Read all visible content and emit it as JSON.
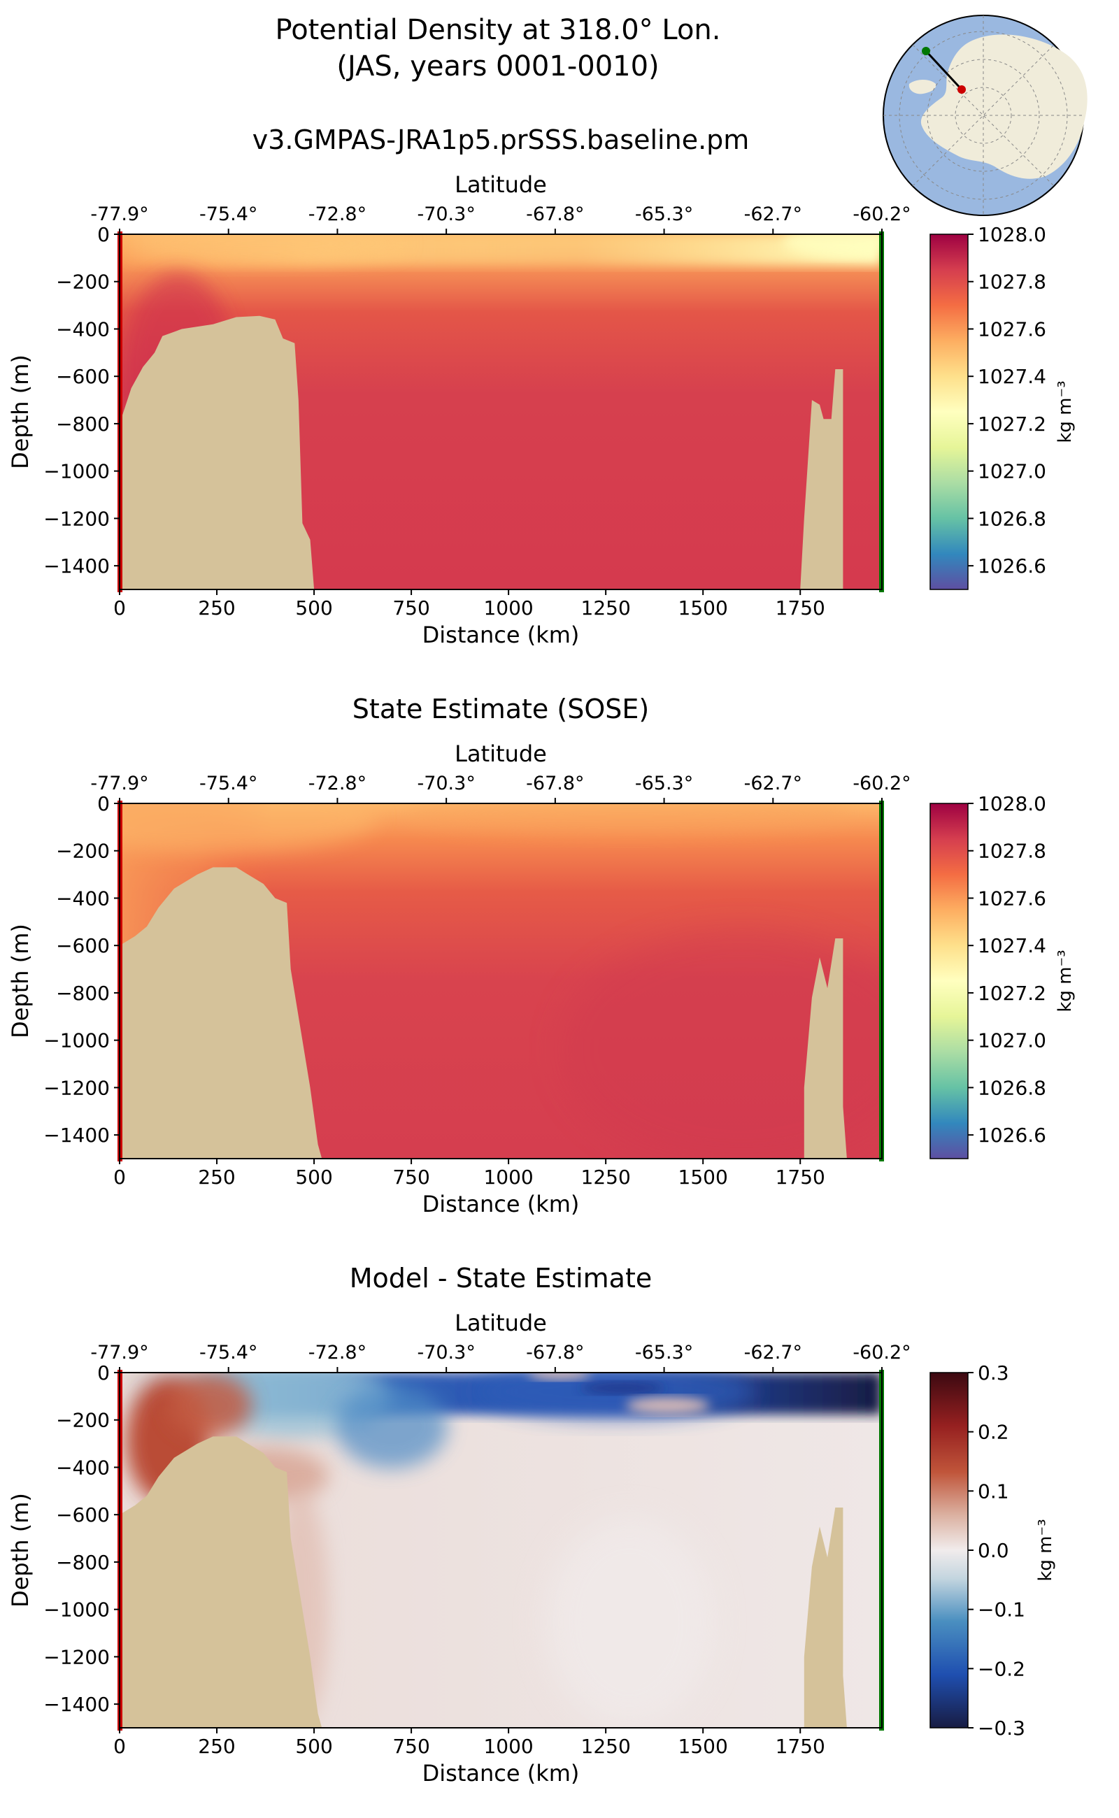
{
  "figure": {
    "title_line1": "Potential Density at 318.0° Lon.",
    "title_line2": "(JAS, years 0001-0010)"
  },
  "chart_data": [
    {
      "type": "heatmap",
      "title": "v3.GMPAS-JRA1p5.prSSS.baseline.pm",
      "xlabel": "Distance (km)",
      "ylabel": "Depth (m)",
      "top_axis_label": "Latitude",
      "xlim": [
        0,
        1960
      ],
      "ylim": [
        -1500,
        0
      ],
      "x_ticks": [
        0,
        250,
        500,
        750,
        1000,
        1250,
        1500,
        1750
      ],
      "y_ticks": [
        0,
        -200,
        -400,
        -600,
        -800,
        -1000,
        -1200,
        -1400
      ],
      "x_tick_labels": [
        "0",
        "250",
        "500",
        "750",
        "1000",
        "1250",
        "1500",
        "1750"
      ],
      "y_tick_labels": [
        "0",
        "−200",
        "−400",
        "−600",
        "−800",
        "−1000",
        "−1200",
        "−1400"
      ],
      "lat_tick_labels": [
        "-77.9°",
        "-75.4°",
        "-72.8°",
        "-70.3°",
        "-67.8°",
        "-65.3°",
        "-62.7°",
        "-60.2°"
      ],
      "lat_tick_positions_km": [
        0,
        280,
        560,
        840,
        1120,
        1400,
        1680,
        1960
      ],
      "colorbar": {
        "label": "kg m⁻³",
        "range": [
          1026.5,
          1028.0
        ],
        "colormap": "Spectral_r",
        "tick_values": [
          1028.0,
          1027.8,
          1027.6,
          1027.4,
          1027.2,
          1027.0,
          1026.8,
          1026.6
        ],
        "tick_labels": [
          "1028.0",
          "1027.8",
          "1027.6",
          "1027.4",
          "1027.2",
          "1027.0",
          "1026.8",
          "1026.6"
        ]
      },
      "field_summary": {
        "surface_density_range": [
          1027.4,
          1027.6
        ],
        "interior_density": 1027.85,
        "near_shelf_bottom_density": 1027.95
      },
      "bathymetry_km_depth": [
        [
          0,
          -800
        ],
        [
          30,
          -650
        ],
        [
          60,
          -560
        ],
        [
          90,
          -500
        ],
        [
          110,
          -430
        ],
        [
          160,
          -400
        ],
        [
          240,
          -380
        ],
        [
          300,
          -350
        ],
        [
          360,
          -345
        ],
        [
          400,
          -360
        ],
        [
          420,
          -440
        ],
        [
          450,
          -460
        ],
        [
          460,
          -700
        ],
        [
          470,
          -1220
        ],
        [
          490,
          -1290
        ],
        [
          500,
          -1500
        ]
      ],
      "ridge_km_depth": [
        [
          1750,
          -1500
        ],
        [
          1760,
          -1200
        ],
        [
          1780,
          -700
        ],
        [
          1800,
          -720
        ],
        [
          1810,
          -780
        ],
        [
          1830,
          -780
        ],
        [
          1840,
          -570
        ],
        [
          1860,
          -570
        ],
        [
          1860,
          -1500
        ]
      ]
    },
    {
      "type": "heatmap",
      "title": "State Estimate (SOSE)",
      "xlabel": "Distance (km)",
      "ylabel": "Depth (m)",
      "top_axis_label": "Latitude",
      "xlim": [
        0,
        1960
      ],
      "ylim": [
        -1500,
        0
      ],
      "x_ticks": [
        0,
        250,
        500,
        750,
        1000,
        1250,
        1500,
        1750
      ],
      "y_ticks": [
        0,
        -200,
        -400,
        -600,
        -800,
        -1000,
        -1200,
        -1400
      ],
      "x_tick_labels": [
        "0",
        "250",
        "500",
        "750",
        "1000",
        "1250",
        "1500",
        "1750"
      ],
      "y_tick_labels": [
        "0",
        "−200",
        "−400",
        "−600",
        "−800",
        "−1000",
        "−1200",
        "−1400"
      ],
      "lat_tick_labels": [
        "-77.9°",
        "-75.4°",
        "-72.8°",
        "-70.3°",
        "-67.8°",
        "-65.3°",
        "-62.7°",
        "-60.2°"
      ],
      "lat_tick_positions_km": [
        0,
        280,
        560,
        840,
        1120,
        1400,
        1680,
        1960
      ],
      "colorbar": {
        "label": "kg m⁻³",
        "range": [
          1026.5,
          1028.0
        ],
        "colormap": "Spectral_r",
        "tick_values": [
          1028.0,
          1027.8,
          1027.6,
          1027.4,
          1027.2,
          1027.0,
          1026.8,
          1026.6
        ],
        "tick_labels": [
          "1028.0",
          "1027.8",
          "1027.6",
          "1027.4",
          "1027.2",
          "1027.0",
          "1026.8",
          "1026.6"
        ]
      },
      "field_summary": {
        "surface_density_range": [
          1027.4,
          1027.6
        ],
        "interior_density": 1027.85
      },
      "bathymetry_km_depth": [
        [
          0,
          -600
        ],
        [
          40,
          -560
        ],
        [
          70,
          -520
        ],
        [
          100,
          -440
        ],
        [
          140,
          -360
        ],
        [
          200,
          -300
        ],
        [
          240,
          -270
        ],
        [
          300,
          -270
        ],
        [
          330,
          -300
        ],
        [
          370,
          -340
        ],
        [
          400,
          -400
        ],
        [
          430,
          -420
        ],
        [
          440,
          -700
        ],
        [
          470,
          -1000
        ],
        [
          490,
          -1200
        ],
        [
          510,
          -1440
        ],
        [
          520,
          -1500
        ]
      ],
      "ridge_km_depth": [
        [
          1760,
          -1500
        ],
        [
          1760,
          -1200
        ],
        [
          1780,
          -820
        ],
        [
          1800,
          -650
        ],
        [
          1820,
          -780
        ],
        [
          1840,
          -570
        ],
        [
          1860,
          -570
        ],
        [
          1860,
          -1280
        ],
        [
          1870,
          -1500
        ]
      ]
    },
    {
      "type": "heatmap",
      "title": "Model - State Estimate",
      "xlabel": "Distance (km)",
      "ylabel": "Depth (m)",
      "top_axis_label": "Latitude",
      "xlim": [
        0,
        1960
      ],
      "ylim": [
        -1500,
        0
      ],
      "x_ticks": [
        0,
        250,
        500,
        750,
        1000,
        1250,
        1500,
        1750
      ],
      "y_ticks": [
        0,
        -200,
        -400,
        -600,
        -800,
        -1000,
        -1200,
        -1400
      ],
      "x_tick_labels": [
        "0",
        "250",
        "500",
        "750",
        "1000",
        "1250",
        "1500",
        "1750"
      ],
      "y_tick_labels": [
        "0",
        "−200",
        "−400",
        "−600",
        "−800",
        "−1000",
        "−1200",
        "−1400"
      ],
      "lat_tick_labels": [
        "-77.9°",
        "-75.4°",
        "-72.8°",
        "-70.3°",
        "-67.8°",
        "-65.3°",
        "-62.7°",
        "-60.2°"
      ],
      "lat_tick_positions_km": [
        0,
        280,
        560,
        840,
        1120,
        1400,
        1680,
        1960
      ],
      "colorbar": {
        "label": "kg m⁻³",
        "range": [
          -0.3,
          0.3
        ],
        "colormap": "balance",
        "tick_values": [
          0.3,
          0.2,
          0.1,
          0.0,
          -0.1,
          -0.2,
          -0.3
        ],
        "tick_labels": [
          "0.3",
          "0.2",
          "0.1",
          "0.0",
          "−0.1",
          "−0.2",
          "−0.3"
        ]
      },
      "field_summary": {
        "shelf_anomaly": 0.2,
        "surface_anomaly_offshore": -0.25,
        "interior_anomaly": 0.0
      },
      "bathymetry_km_depth": [
        [
          0,
          -600
        ],
        [
          40,
          -560
        ],
        [
          70,
          -520
        ],
        [
          100,
          -440
        ],
        [
          140,
          -360
        ],
        [
          200,
          -300
        ],
        [
          240,
          -270
        ],
        [
          300,
          -270
        ],
        [
          330,
          -300
        ],
        [
          370,
          -340
        ],
        [
          400,
          -400
        ],
        [
          430,
          -420
        ],
        [
          440,
          -700
        ],
        [
          470,
          -1000
        ],
        [
          490,
          -1200
        ],
        [
          510,
          -1440
        ],
        [
          520,
          -1500
        ]
      ],
      "ridge_km_depth": [
        [
          1760,
          -1500
        ],
        [
          1760,
          -1200
        ],
        [
          1780,
          -820
        ],
        [
          1800,
          -650
        ],
        [
          1820,
          -780
        ],
        [
          1840,
          -570
        ],
        [
          1860,
          -570
        ],
        [
          1860,
          -1280
        ],
        [
          1870,
          -1500
        ]
      ]
    }
  ],
  "inset_map": {
    "section_start_color": "#cc0000",
    "section_end_color": "#007700",
    "ocean_color": "#9ab8e0",
    "land_color": "#f0ecda"
  },
  "colors": {
    "land_mask": "#d5c29a",
    "start_marker": "#cc0000",
    "end_marker": "#007700"
  }
}
